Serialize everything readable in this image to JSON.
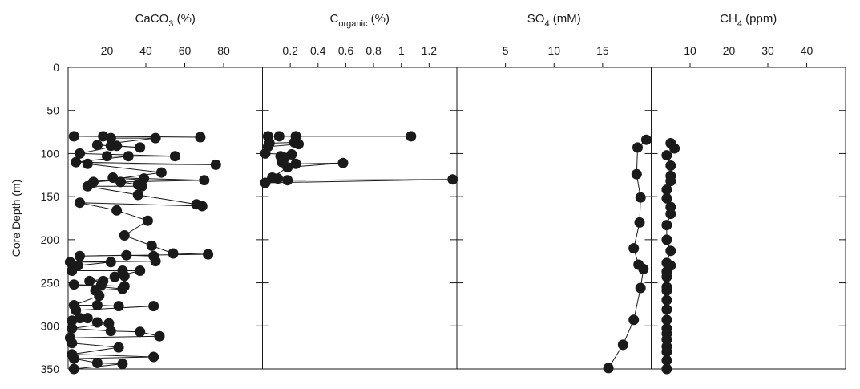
{
  "chart_data": {
    "type": "scatter",
    "grid": false,
    "ylabel": "Core Depth (m)",
    "ylim": [
      0,
      350
    ],
    "yticks": [
      0,
      50,
      100,
      150,
      200,
      250,
      300,
      350
    ],
    "panels": [
      {
        "id": "caco3",
        "title": "CaCO",
        "title_sub": "3",
        "title_unit": " (%)",
        "xlim": [
          0,
          100
        ],
        "xticks": [
          20,
          40,
          60,
          80
        ],
        "tick_labels": [
          "20",
          "40",
          "60",
          "80"
        ],
        "series": [
          {
            "points": [
              [
                3,
                80
              ],
              [
                68,
                81
              ],
              [
                18,
                80
              ],
              [
                22,
                82
              ],
              [
                45,
                82
              ],
              [
                15,
                90
              ],
              [
                22,
                91
              ],
              [
                37,
                93
              ],
              [
                25,
                91
              ],
              [
                6,
                100
              ],
              [
                55,
                103
              ],
              [
                20,
                103
              ],
              [
                31,
                103
              ],
              [
                4,
                110
              ],
              [
                76,
                113
              ],
              [
                10,
                112
              ],
              [
                48,
                122
              ],
              [
                13,
                133
              ],
              [
                39,
                129
              ],
              [
                23,
                128
              ],
              [
                70,
                131
              ],
              [
                27,
                133
              ],
              [
                36,
                136
              ],
              [
                38,
                138
              ],
              [
                10,
                138
              ],
              [
                36,
                148
              ],
              [
                66,
                159
              ],
              [
                69,
                161
              ],
              [
                6,
                157
              ],
              [
                25,
                166
              ],
              [
                41,
                178
              ],
              [
                29,
                195
              ],
              [
                43,
                207
              ],
              [
                54,
                216
              ],
              [
                72,
                217
              ],
              [
                6,
                219
              ],
              [
                30,
                218
              ],
              [
                44,
                219
              ],
              [
                45,
                225
              ],
              [
                1,
                226
              ],
              [
                22,
                226
              ],
              [
                5,
                230
              ],
              [
                2,
                236
              ],
              [
                28,
                236
              ],
              [
                37,
                236
              ],
              [
                24,
                243
              ],
              [
                29,
                242
              ],
              [
                11,
                248
              ],
              [
                18,
                248
              ],
              [
                17,
                253
              ],
              [
                29,
                254
              ],
              [
                3,
                252
              ],
              [
                28,
                257
              ],
              [
                14,
                259
              ],
              [
                16,
                265
              ],
              [
                3,
                276
              ],
              [
                15,
                276
              ],
              [
                26,
                277
              ],
              [
                44,
                277
              ],
              [
                4,
                282
              ],
              [
                6,
                291
              ],
              [
                10,
                291
              ],
              [
                2,
                294
              ],
              [
                15,
                296
              ],
              [
                21,
                297
              ],
              [
                2,
                303
              ],
              [
                22,
                306
              ],
              [
                37,
                307
              ],
              [
                47,
                312
              ],
              [
                1,
                314
              ],
              [
                2,
                320
              ],
              [
                26,
                325
              ],
              [
                2,
                333
              ],
              [
                44,
                336
              ],
              [
                3,
                338
              ],
              [
                15,
                343
              ],
              [
                28,
                344
              ],
              [
                3,
                350
              ]
            ]
          }
        ]
      },
      {
        "id": "corganic",
        "title": "C",
        "title_sub": "organic",
        "title_unit": " (%)",
        "xlim": [
          0,
          1.4
        ],
        "xticks": [
          0.2,
          0.4,
          0.6,
          0.8,
          1.0,
          1.2
        ],
        "tick_labels": [
          "0.2",
          "0.4",
          "0.6",
          "0.8",
          "1",
          "1.2"
        ],
        "series": [
          {
            "points": [
              [
                0.04,
                80
              ],
              [
                1.07,
                80
              ],
              [
                0.24,
                80
              ],
              [
                0.12,
                80
              ],
              [
                0.05,
                88
              ],
              [
                0.23,
                87
              ],
              [
                0.26,
                89
              ],
              [
                0.04,
                92
              ],
              [
                0.02,
                100
              ],
              [
                0.21,
                101
              ],
              [
                0.13,
                103
              ],
              [
                0.16,
                105
              ],
              [
                0.14,
                110
              ],
              [
                0.24,
                112
              ],
              [
                0.58,
                111
              ],
              [
                0.18,
                116
              ],
              [
                0.07,
                128
              ],
              [
                0.11,
                129
              ],
              [
                0.18,
                131
              ],
              [
                1.37,
                130
              ],
              [
                0.02,
                134
              ]
            ]
          }
        ]
      },
      {
        "id": "so4",
        "title": "SO",
        "title_sub": "4",
        "title_unit": " (mM)",
        "xlim": [
          0,
          20
        ],
        "xticks": [
          5,
          10,
          15
        ],
        "tick_labels": [
          "5",
          "10",
          "15"
        ],
        "series": [
          {
            "points": [
              [
                19.5,
                84
              ],
              [
                18.6,
                93
              ],
              [
                18.5,
                124
              ],
              [
                18.9,
                151
              ],
              [
                18.8,
                180
              ],
              [
                18.2,
                210
              ],
              [
                18.7,
                229
              ],
              [
                19.2,
                234
              ],
              [
                18.9,
                256
              ],
              [
                18.2,
                293
              ],
              [
                17.1,
                322
              ],
              [
                15.6,
                349
              ]
            ]
          }
        ]
      },
      {
        "id": "ch4",
        "title": "CH",
        "title_sub": "4",
        "title_unit": " (ppm)",
        "xlim": [
          0,
          50
        ],
        "xticks": [
          10,
          20,
          30,
          40
        ],
        "tick_labels": [
          "10",
          "20",
          "30",
          "40"
        ],
        "series": [
          {
            "points": [
              [
                5,
                88
              ],
              [
                6,
                94
              ],
              [
                4,
                102
              ],
              [
                5,
                114
              ],
              [
                5,
                126
              ],
              [
                5,
                132
              ],
              [
                4,
                142
              ],
              [
                4,
                152
              ],
              [
                5,
                162
              ],
              [
                5,
                170
              ],
              [
                4,
                183
              ],
              [
                4,
                200
              ],
              [
                5,
                213
              ],
              [
                4,
                227
              ],
              [
                5,
                230
              ],
              [
                4,
                237
              ],
              [
                4,
                243
              ],
              [
                4,
                255
              ],
              [
                4,
                259
              ],
              [
                4,
                270
              ],
              [
                4,
                281
              ],
              [
                4,
                293
              ],
              [
                4,
                303
              ],
              [
                4,
                309
              ],
              [
                4,
                316
              ],
              [
                4,
                324
              ],
              [
                4,
                330
              ],
              [
                4,
                340
              ],
              [
                4,
                350
              ]
            ]
          }
        ]
      }
    ]
  }
}
